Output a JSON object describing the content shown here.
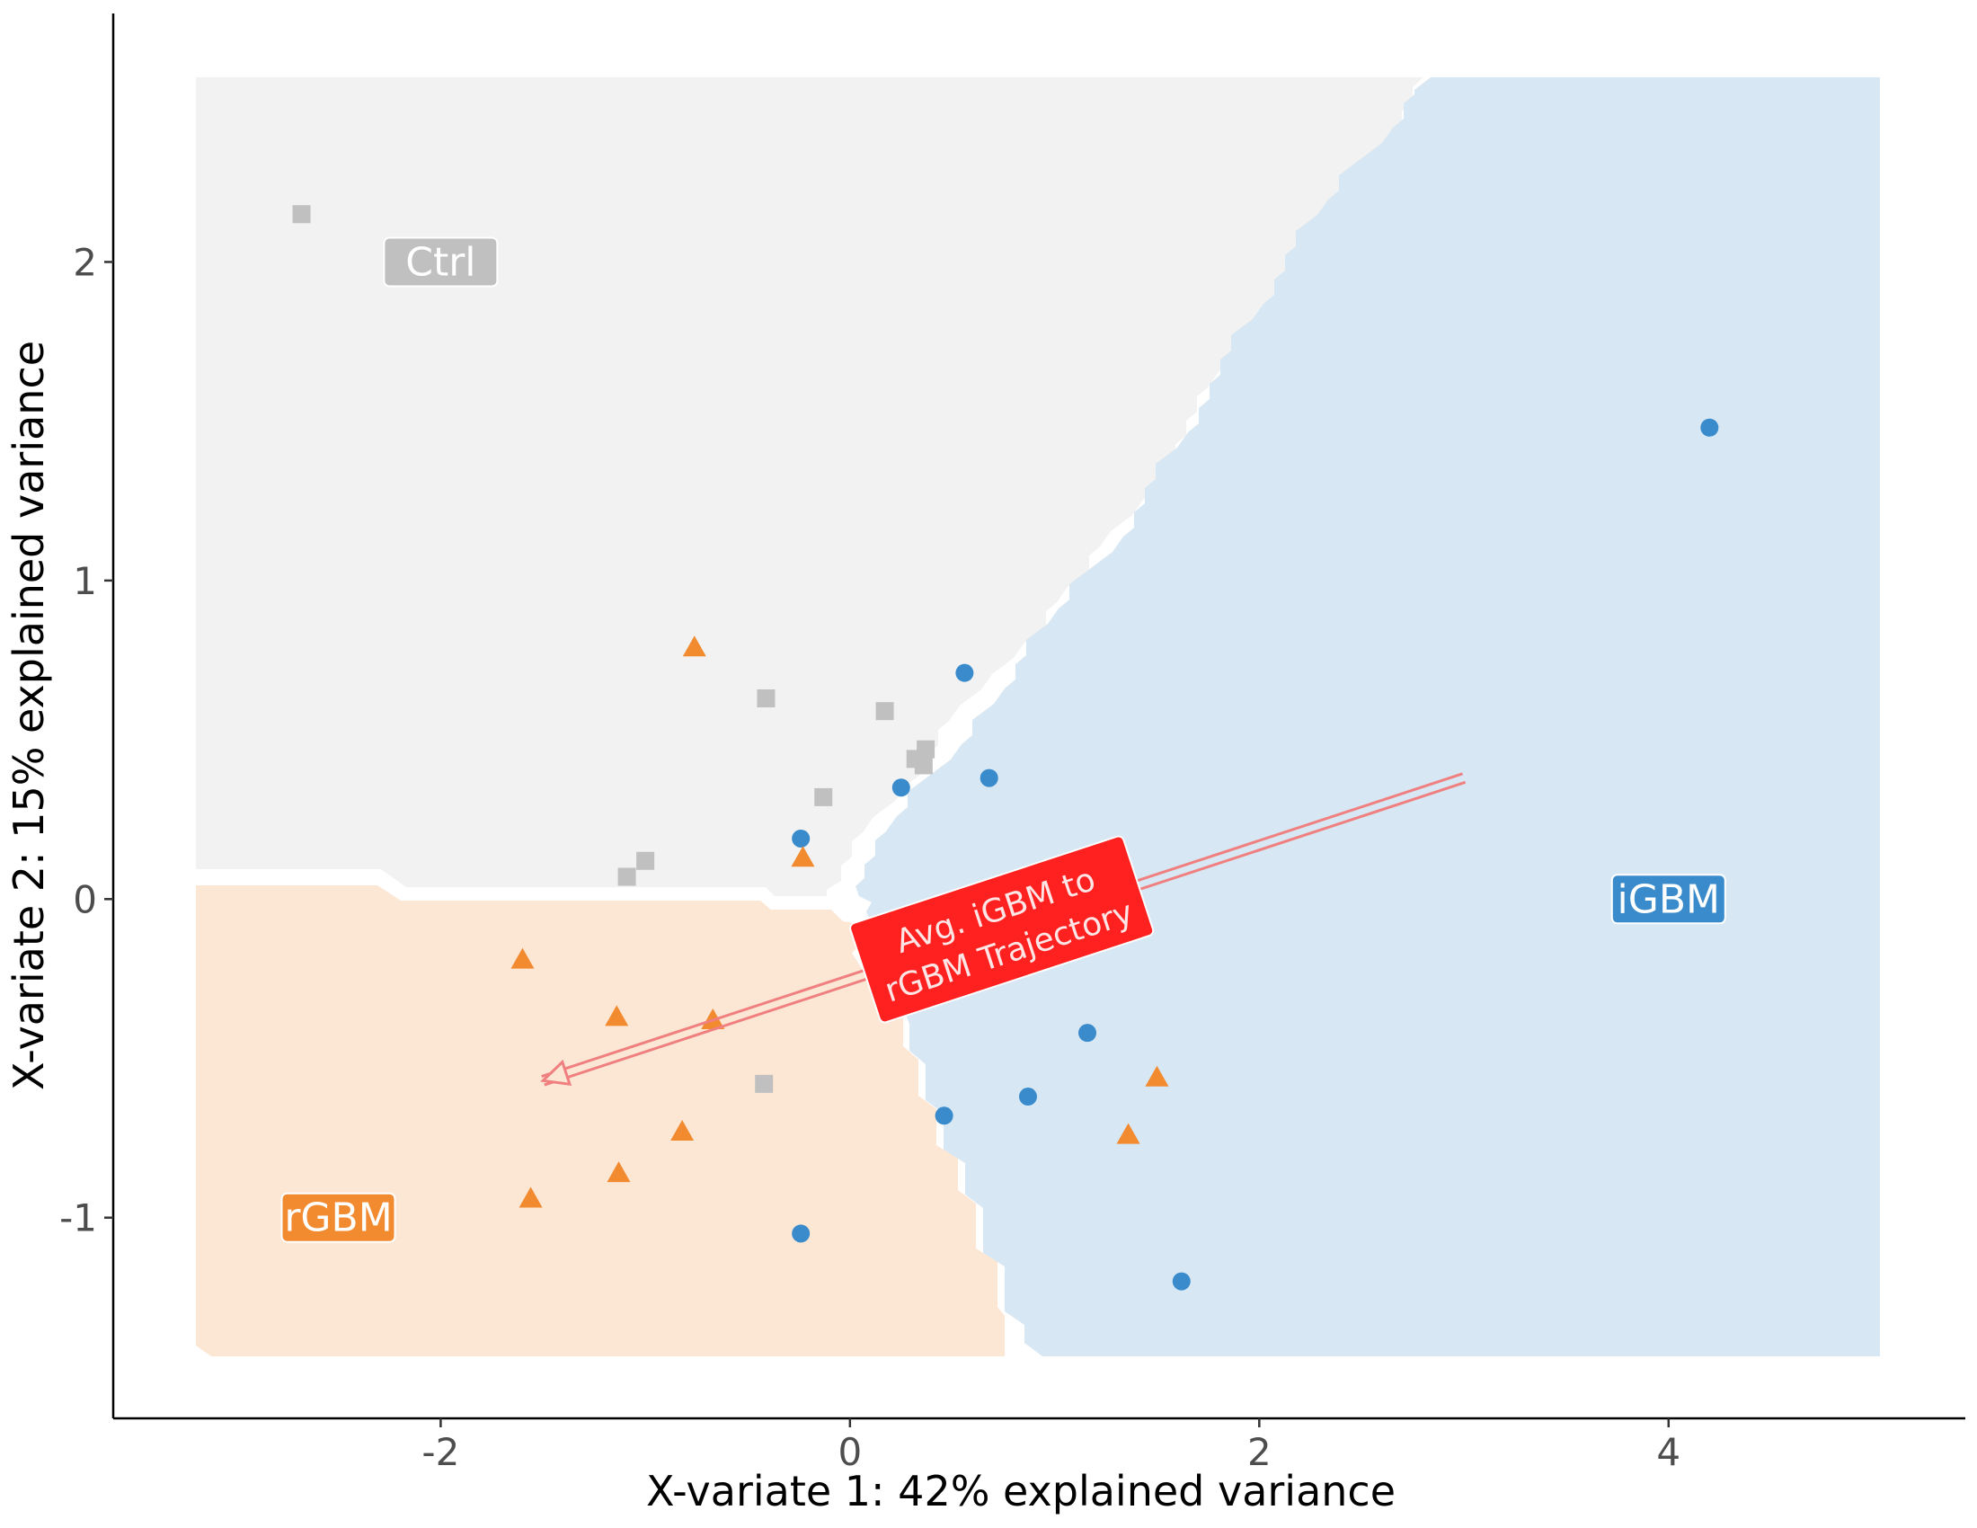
{
  "chart_data": {
    "type": "scatter",
    "xlabel": "X-variate 1: 42% explained variance",
    "ylabel": "X-variate 2: 15% explained variance",
    "xlim": [
      -3.6,
      5.45
    ],
    "ylim": [
      -1.63,
      2.78
    ],
    "x_ticks": [
      -2,
      0,
      2,
      4
    ],
    "y_ticks": [
      -1,
      0,
      1,
      2
    ],
    "grid": false,
    "background_regions": [
      {
        "name": "Ctrl",
        "color": "#f2f2f2"
      },
      {
        "name": "rGBM",
        "color": "#fce6d4"
      },
      {
        "name": "iGBM",
        "color": "#d7e7f3"
      }
    ],
    "region_labels": [
      {
        "text": "Ctrl",
        "x": -2.0,
        "y": 2.0,
        "color": "#c0c0c0"
      },
      {
        "text": "rGBM",
        "x": -2.5,
        "y": -1.0,
        "color": "#f28a30"
      },
      {
        "text": "iGBM",
        "x": 4.0,
        "y": 0.0,
        "color": "#3a8bcc"
      }
    ],
    "series": [
      {
        "name": "Ctrl",
        "shape": "square",
        "color": "#c0c0c0",
        "x": [
          -2.68,
          -0.41,
          0.17,
          0.32,
          0.36,
          0.37,
          -0.13,
          -1.0,
          -1.09,
          -0.42
        ],
        "y": [
          2.15,
          0.63,
          0.59,
          0.44,
          0.42,
          0.47,
          0.32,
          0.12,
          0.07,
          -0.58
        ]
      },
      {
        "name": "iGBM",
        "shape": "circle",
        "color": "#3a8bcc",
        "x": [
          4.2,
          0.56,
          0.68,
          0.25,
          -0.24,
          1.16,
          0.87,
          0.46,
          -0.24,
          1.62
        ],
        "y": [
          1.48,
          0.71,
          0.38,
          0.35,
          0.19,
          -0.42,
          -0.62,
          -0.68,
          -1.05,
          -1.2
        ]
      },
      {
        "name": "rGBM",
        "shape": "triangle",
        "color": "#f28a30",
        "x": [
          -0.76,
          -0.23,
          -1.6,
          -1.14,
          -0.67,
          1.5,
          1.36,
          -0.82,
          -1.13,
          -1.56
        ],
        "y": [
          0.79,
          0.13,
          -0.19,
          -0.37,
          -0.38,
          -0.56,
          -0.74,
          -0.73,
          -0.86,
          -0.94
        ]
      }
    ],
    "arrow": {
      "label_line1": "Avg. iGBM to",
      "label_line2": "rGBM Trajectory",
      "from": [
        3.0,
        0.38
      ],
      "to": [
        -1.5,
        -0.57
      ],
      "color": "#f08080",
      "label_color": "#ff2020"
    }
  }
}
